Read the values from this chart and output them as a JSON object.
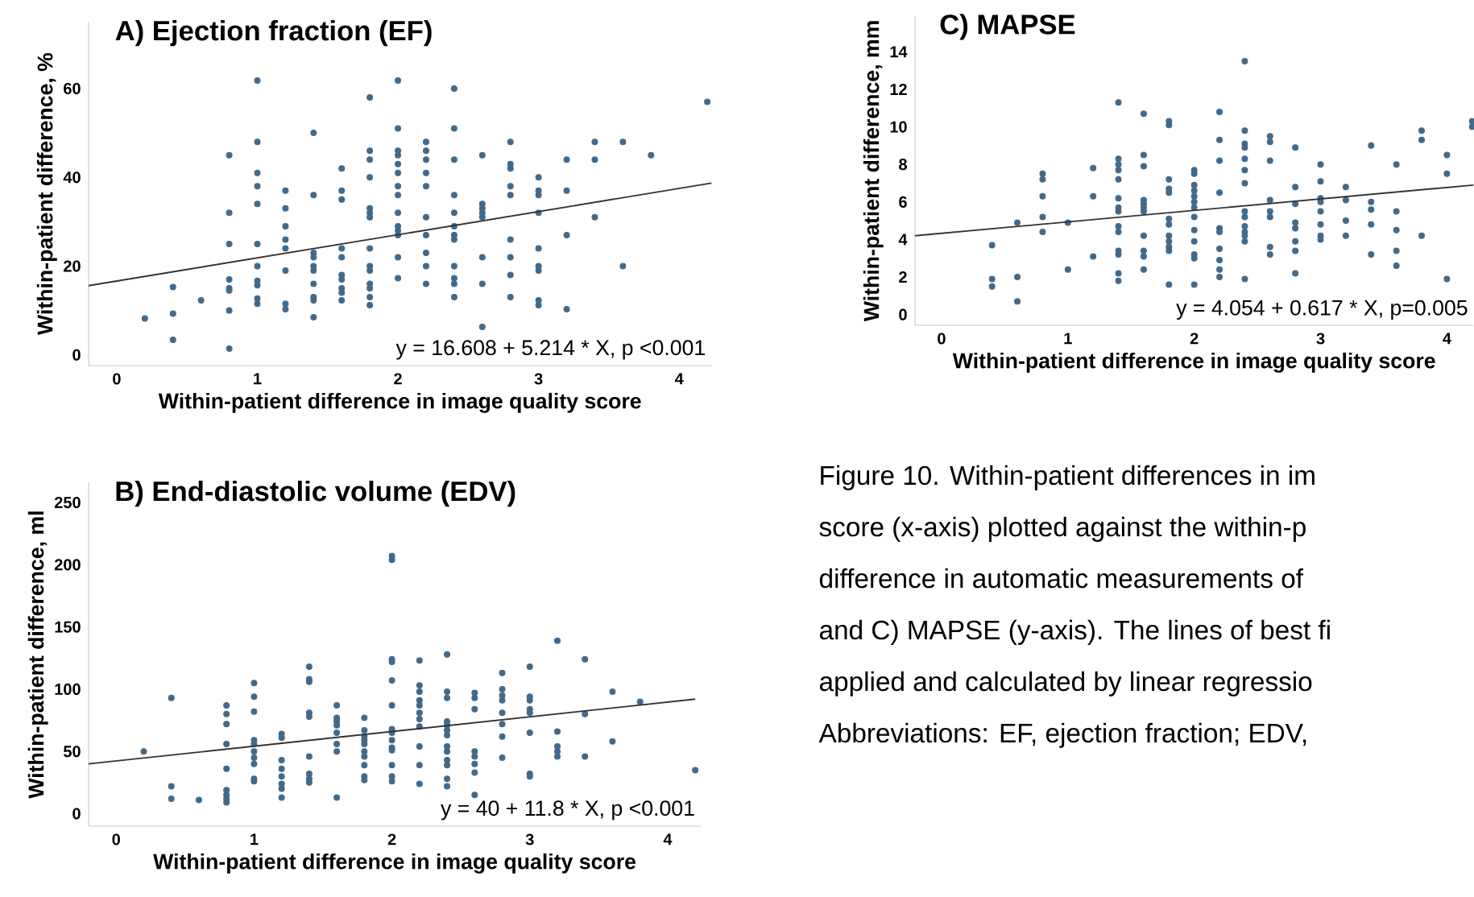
{
  "chart_data": [
    {
      "type": "scatter",
      "title": "A) Ejection fraction (EF)",
      "xlabel": "Within-patient difference in image quality score",
      "ylabel": "Within-patient difference, %",
      "xlim": [
        -0.2,
        4.23
      ],
      "ylim": [
        -2.4,
        75
      ],
      "xticks": [
        0,
        1,
        2,
        3,
        4
      ],
      "yticks": [
        0,
        20,
        40,
        60
      ],
      "annotations": [
        "y = 16.608 + 5.214 * X, p <0.001"
      ],
      "series": [
        {
          "type": "scatter",
          "marker": "circle",
          "color": "#41698a",
          "x": [
            0.2,
            0.4,
            0.4,
            0.4,
            0.6,
            0.8,
            0.8,
            0.8,
            0.8,
            0.8,
            0.8,
            0.8,
            0.8,
            1.0,
            1.0,
            1.0,
            1.0,
            1.0,
            1.0,
            1.0,
            1.0,
            1.0,
            1.0,
            1.0,
            1.2,
            1.2,
            1.2,
            1.2,
            1.2,
            1.2,
            1.2,
            1.2,
            1.4,
            1.4,
            1.4,
            1.4,
            1.4,
            1.4,
            1.4,
            1.4,
            1.4,
            1.4,
            1.6,
            1.6,
            1.6,
            1.6,
            1.6,
            1.6,
            1.6,
            1.6,
            1.6,
            1.6,
            1.8,
            1.8,
            1.8,
            1.8,
            1.8,
            1.8,
            1.8,
            1.8,
            1.8,
            1.8,
            1.8,
            1.8,
            1.8,
            1.8,
            2.0,
            2.0,
            2.0,
            2.0,
            2.0,
            2.0,
            2.0,
            2.0,
            2.0,
            2.0,
            2.0,
            2.0,
            2.0,
            2.0,
            2.2,
            2.2,
            2.2,
            2.2,
            2.2,
            2.2,
            2.2,
            2.2,
            2.2,
            2.2,
            2.4,
            2.4,
            2.4,
            2.4,
            2.4,
            2.4,
            2.4,
            2.4,
            2.4,
            2.4,
            2.4,
            2.4,
            2.6,
            2.6,
            2.6,
            2.6,
            2.6,
            2.6,
            2.6,
            2.6,
            2.8,
            2.8,
            2.8,
            2.8,
            2.8,
            2.8,
            2.8,
            2.8,
            2.8,
            3.0,
            3.0,
            3.0,
            3.0,
            3.0,
            3.0,
            3.0,
            3.0,
            3.0,
            3.2,
            3.2,
            3.2,
            3.2,
            3.4,
            3.4,
            3.4,
            3.6,
            3.6,
            3.8,
            4.2
          ],
          "values": [
            8.2,
            15.3,
            9.3,
            3.4,
            12.3,
            45,
            32,
            25,
            17,
            15,
            14.5,
            10,
            1.4,
            61.8,
            48,
            41,
            38,
            34,
            25,
            20,
            16.7,
            15.7,
            12.7,
            11.5,
            37,
            33,
            29,
            26,
            24,
            19,
            11.5,
            10.3,
            50,
            36,
            23,
            22,
            20,
            19,
            16,
            13,
            12.3,
            8.5,
            42,
            37,
            35,
            24,
            22,
            18,
            17,
            15,
            14,
            12.3,
            58,
            46,
            44,
            40,
            33,
            32,
            31,
            24,
            20,
            19,
            16,
            15,
            13,
            11.2,
            61.8,
            51,
            46,
            45,
            43,
            41,
            38,
            36,
            32,
            29,
            28,
            27,
            22,
            17.3,
            48,
            46,
            44,
            41,
            38,
            31,
            27,
            23,
            20,
            16,
            60,
            51,
            44,
            36,
            32,
            29,
            27,
            26,
            20,
            17.3,
            16,
            13,
            45,
            34,
            33,
            32,
            31,
            22,
            16,
            6.3,
            48,
            43,
            42,
            38,
            36,
            26,
            22,
            18,
            13,
            40,
            37,
            36,
            32,
            24,
            20,
            19,
            12.3,
            11.2,
            44,
            37,
            27,
            10.3,
            48,
            44,
            31,
            48,
            20,
            45,
            57
          ]
        },
        {
          "type": "line",
          "color": "#333333",
          "x": [
            -0.2,
            4.23
          ],
          "values": [
            15.6,
            38.7
          ]
        }
      ]
    },
    {
      "type": "scatter",
      "title": "B) End-diastolic volume (EDV)",
      "xlabel": "Within-patient difference in image quality score",
      "ylabel": "Within-patient difference, ml",
      "xlim": [
        -0.2,
        4.24
      ],
      "ylim": [
        -10,
        266
      ],
      "xticks": [
        0,
        1,
        2,
        3,
        4
      ],
      "yticks": [
        0,
        50,
        100,
        150,
        200,
        250
      ],
      "annotations": [
        "y = 40 + 11.8 * X, p <0.001"
      ],
      "series": [
        {
          "type": "scatter",
          "marker": "circle",
          "color": "#41698a",
          "x": [
            0.2,
            0.4,
            0.4,
            0.4,
            0.6,
            0.8,
            0.8,
            0.8,
            0.8,
            0.8,
            0.8,
            0.8,
            0.8,
            0.8,
            1.0,
            1.0,
            1.0,
            1.0,
            1.0,
            1.0,
            1.0,
            1.0,
            1.0,
            1.0,
            1.2,
            1.2,
            1.2,
            1.2,
            1.2,
            1.2,
            1.2,
            1.2,
            1.4,
            1.4,
            1.4,
            1.4,
            1.4,
            1.4,
            1.4,
            1.4,
            1.4,
            1.6,
            1.6,
            1.6,
            1.6,
            1.6,
            1.6,
            1.6,
            1.6,
            1.8,
            1.8,
            1.8,
            1.8,
            1.8,
            1.8,
            1.8,
            1.8,
            1.8,
            1.8,
            2.0,
            2.0,
            2.0,
            2.0,
            2.0,
            2.0,
            2.0,
            2.0,
            2.0,
            2.0,
            2.0,
            2.0,
            2.0,
            2.0,
            2.2,
            2.2,
            2.2,
            2.2,
            2.2,
            2.2,
            2.2,
            2.2,
            2.2,
            2.2,
            2.2,
            2.4,
            2.4,
            2.4,
            2.4,
            2.4,
            2.4,
            2.4,
            2.4,
            2.4,
            2.4,
            2.4,
            2.4,
            2.4,
            2.6,
            2.6,
            2.6,
            2.6,
            2.6,
            2.6,
            2.6,
            2.6,
            2.8,
            2.8,
            2.8,
            2.8,
            2.8,
            2.8,
            2.8,
            2.8,
            3.0,
            3.0,
            3.0,
            3.0,
            3.0,
            3.0,
            3.0,
            3.0,
            3.2,
            3.2,
            3.2,
            3.2,
            3.2,
            3.4,
            3.4,
            3.4,
            3.6,
            3.6,
            3.8,
            4.2
          ],
          "values": [
            50,
            93,
            22,
            12,
            11,
            87,
            80,
            72,
            56,
            36,
            19,
            15,
            12,
            9,
            105,
            94,
            82,
            59,
            56,
            50,
            45,
            40,
            28,
            26,
            64,
            61,
            43,
            36,
            30,
            24,
            20,
            13,
            118,
            108,
            106,
            81,
            78,
            46,
            32,
            28,
            25,
            87,
            77,
            74,
            71,
            65,
            56,
            50,
            13,
            77,
            67,
            62,
            59,
            56,
            50,
            46,
            39,
            30,
            27,
            207,
            204,
            124,
            122,
            107,
            87,
            68,
            65,
            59,
            53,
            51,
            39,
            30,
            26,
            123,
            103,
            98,
            91,
            87,
            81,
            76,
            70,
            54,
            39,
            24,
            128,
            98,
            93,
            74,
            71,
            67,
            63,
            54,
            50,
            43,
            39,
            28,
            22,
            97,
            93,
            84,
            50,
            46,
            40,
            33,
            15,
            113,
            100,
            95,
            91,
            81,
            72,
            62,
            45,
            118,
            94,
            91,
            84,
            81,
            65,
            32,
            30,
            139,
            66,
            54,
            50,
            46,
            124,
            80,
            46,
            98,
            58,
            90,
            35
          ]
        },
        {
          "type": "line",
          "color": "#333333",
          "x": [
            -0.2,
            4.2
          ],
          "values": [
            40,
            92
          ]
        }
      ]
    },
    {
      "type": "scatter",
      "title": "C) MAPSE",
      "xlabel": "Within-patient difference in image quality score",
      "ylabel": "Within-patient difference,  mm",
      "xlim": [
        -0.21,
        4.21
      ],
      "ylim": [
        -0.57,
        15.9
      ],
      "xticks": [
        0,
        1,
        2,
        3,
        4
      ],
      "yticks": [
        0,
        2,
        4,
        6,
        8,
        10,
        12,
        14
      ],
      "annotations": [
        "y = 4.054 + 0.617 * X, p=0.005"
      ],
      "series": [
        {
          "type": "scatter",
          "marker": "circle",
          "color": "#41698a",
          "x": [
            0.4,
            0.4,
            0.4,
            0.6,
            0.6,
            0.6,
            0.8,
            0.8,
            0.8,
            0.8,
            0.8,
            1.0,
            1.0,
            1.2,
            1.2,
            1.2,
            1.4,
            1.4,
            1.4,
            1.4,
            1.4,
            1.4,
            1.4,
            1.4,
            1.4,
            1.4,
            1.4,
            1.4,
            1.4,
            1.4,
            1.6,
            1.6,
            1.6,
            1.6,
            1.6,
            1.6,
            1.6,
            1.6,
            1.6,
            1.6,
            1.6,
            1.8,
            1.8,
            1.8,
            1.8,
            1.8,
            1.8,
            1.8,
            1.8,
            1.8,
            1.8,
            1.8,
            1.8,
            2.0,
            2.0,
            2.0,
            2.0,
            2.0,
            2.0,
            2.0,
            2.0,
            2.0,
            2.0,
            2.0,
            2.0,
            2.0,
            2.2,
            2.2,
            2.2,
            2.2,
            2.2,
            2.2,
            2.2,
            2.2,
            2.2,
            2.2,
            2.4,
            2.4,
            2.4,
            2.4,
            2.4,
            2.4,
            2.4,
            2.4,
            2.4,
            2.4,
            2.4,
            2.4,
            2.4,
            2.4,
            2.6,
            2.6,
            2.6,
            2.6,
            2.6,
            2.6,
            2.6,
            2.6,
            2.8,
            2.8,
            2.8,
            2.8,
            2.8,
            2.8,
            2.8,
            2.8,
            3.0,
            3.0,
            3.0,
            3.0,
            3.0,
            3.0,
            3.0,
            3.0,
            3.2,
            3.2,
            3.2,
            3.2,
            3.4,
            3.4,
            3.4,
            3.4,
            3.4,
            3.6,
            3.6,
            3.6,
            3.6,
            3.6,
            3.8,
            3.8,
            3.8,
            4.0,
            4.0,
            4.0,
            4.2,
            4.2
          ],
          "values": [
            3.7,
            1.9,
            1.5,
            4.9,
            2.0,
            0.7,
            7.5,
            7.2,
            6.3,
            5.2,
            4.4,
            4.9,
            2.4,
            7.8,
            6.3,
            3.1,
            11.3,
            8.3,
            8.0,
            7.7,
            7.2,
            6.2,
            5.7,
            5.5,
            4.7,
            4.4,
            3.4,
            3.2,
            2.2,
            1.8,
            10.7,
            8.5,
            7.9,
            6.1,
            5.9,
            5.7,
            5.5,
            4.2,
            3.4,
            3.1,
            2.4,
            10.3,
            10.1,
            7.2,
            6.7,
            6.5,
            5.1,
            4.8,
            4.2,
            3.9,
            3.6,
            3.4,
            1.6,
            7.7,
            7.5,
            6.9,
            6.6,
            6.3,
            6.0,
            5.7,
            5.2,
            4.5,
            3.9,
            3.2,
            3.0,
            1.6,
            10.8,
            9.3,
            8.2,
            6.5,
            4.6,
            4.4,
            3.5,
            2.9,
            2.4,
            2.0,
            13.5,
            9.8,
            9.1,
            8.9,
            8.3,
            7.7,
            7.0,
            5.5,
            5.2,
            4.7,
            4.4,
            4.2,
            3.9,
            1.9,
            9.5,
            9.2,
            8.2,
            6.1,
            5.5,
            5.2,
            3.6,
            3.2,
            8.9,
            6.8,
            5.9,
            4.9,
            4.6,
            3.9,
            3.4,
            2.2,
            8.0,
            7.1,
            6.2,
            6.0,
            5.5,
            4.8,
            4.2,
            4.0,
            6.8,
            6.1,
            5.0,
            4.2,
            9.0,
            6.0,
            5.6,
            4.8,
            3.2,
            8.0,
            5.5,
            4.5,
            3.4,
            2.6,
            9.8,
            9.3,
            4.2,
            8.5,
            7.5,
            1.9,
            10.3,
            10.0
          ]
        },
        {
          "type": "line",
          "color": "#333333",
          "x": [
            -0.21,
            4.21
          ],
          "values": [
            4.2,
            6.9
          ]
        }
      ]
    },
    {
      "type": "other",
      "annotations": [
        "Figure 10. Within-patient differences in im",
        "score (x-axis) plotted against the within-p",
        "difference in automatic measurements of",
        "and C) MAPSE (y-axis). The lines of best fi",
        "applied and calculated by linear regressio",
        "Abbreviations: EF, ejection fraction; EDV,"
      ]
    }
  ]
}
